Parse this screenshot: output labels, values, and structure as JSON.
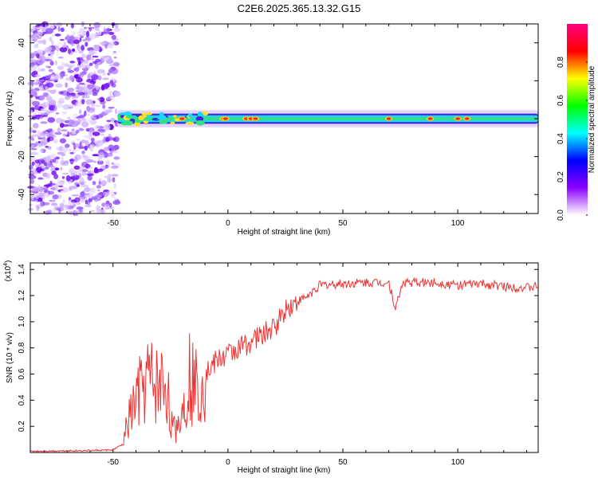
{
  "title": "C2E6.2025.365.13.32.G15",
  "chart_data": [
    {
      "type": "heatmap",
      "name": "spectrogram",
      "xlabel": "Height of straight line (km)",
      "ylabel": "Frequency (Hz)",
      "xlim": [
        -86,
        135
      ],
      "ylim": [
        -50,
        50
      ],
      "xticks": [
        -50,
        0,
        50,
        100
      ],
      "xtick_labels": [
        "-50",
        "0",
        "50",
        "100"
      ],
      "yticks": [
        -40,
        -20,
        0,
        20,
        40
      ],
      "ytick_labels": [
        "-40",
        "-20",
        "0",
        "20",
        "40"
      ],
      "noise_region": {
        "x_start": -86,
        "x_end": -48
      },
      "signal_band": {
        "x_start": -48,
        "x_end": 135,
        "center_hz": 0,
        "half_width_hz": 3
      },
      "high_amplitude_peaks_x": [
        -20,
        -2,
        -1,
        8,
        10,
        12,
        70,
        88,
        100,
        104
      ],
      "colorbar": {
        "label": "Normalized spectral amplitude",
        "range": [
          0.0,
          1.0
        ],
        "ticks": [
          0.0,
          0.2,
          0.4,
          0.6,
          0.8
        ],
        "tick_labels": [
          "0.0",
          "0.2",
          "0.4",
          "0.6",
          "0.8"
        ],
        "colors": [
          "#ffffff",
          "#8b00ff",
          "#0000ff",
          "#00ffff",
          "#00ff00",
          "#ffff00",
          "#ff0000",
          "#ff0080"
        ]
      }
    },
    {
      "type": "line",
      "name": "snr",
      "xlabel": "Height of straight line (km)",
      "ylabel": "SNR (10 * v/v)",
      "y_exponent_label": "(x10",
      "y_exponent_power": "4",
      "y_exponent_close": ")",
      "xlim": [
        -86,
        135
      ],
      "ylim": [
        0,
        14500
      ],
      "xticks": [
        -50,
        0,
        50,
        100
      ],
      "xtick_labels": [
        "-50",
        "0",
        "50",
        "100"
      ],
      "yticks": [
        2000,
        4000,
        6000,
        8000,
        10000,
        12000,
        14000
      ],
      "ytick_labels": [
        "0.2",
        "0.4",
        "0.6",
        "0.8",
        "1.0",
        "1.2",
        "1.4"
      ],
      "color": "#ee3333",
      "x": [
        -86,
        -60,
        -50,
        -46,
        -43,
        -40,
        -35,
        -30,
        -27,
        -24,
        -20,
        -17,
        -14,
        -10,
        -5,
        0,
        5,
        10,
        15,
        20,
        25,
        30,
        35,
        40,
        50,
        60,
        70,
        73,
        76,
        80,
        90,
        100,
        110,
        120,
        130,
        135
      ],
      "values": [
        100,
        150,
        200,
        600,
        2500,
        4000,
        5500,
        5000,
        5500,
        1500,
        3000,
        6000,
        5000,
        6000,
        7000,
        7500,
        8000,
        8500,
        9000,
        9500,
        11000,
        11500,
        12000,
        12800,
        12900,
        13000,
        13000,
        11000,
        13000,
        13000,
        13000,
        12800,
        12900,
        12700,
        12600,
        12700
      ]
    }
  ]
}
